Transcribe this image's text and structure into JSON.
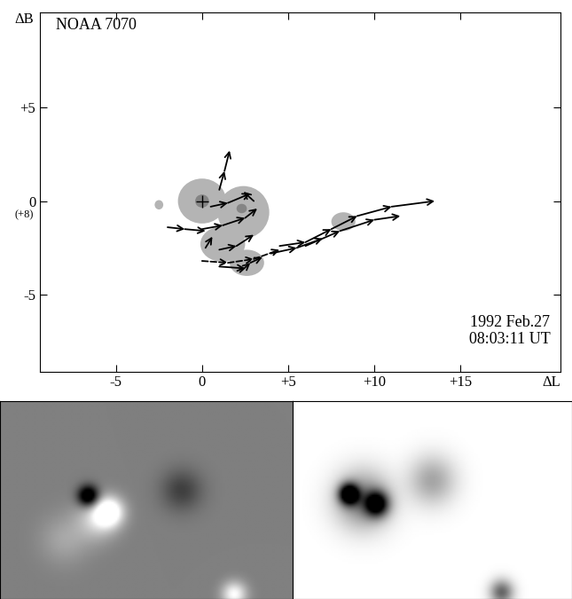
{
  "chart_data": {
    "type": "vector_map",
    "title": "NOAA 7070",
    "x_label": "ΔL",
    "y_label": "ΔB",
    "y_origin_note": "(+8)",
    "date": "1992 Feb.27",
    "time": "08:03:11 UT",
    "xlim": [
      -9.4,
      20.8
    ],
    "ylim": [
      -9.1,
      10.1
    ],
    "xticks": [
      {
        "value": -5,
        "label": "-5"
      },
      0,
      {
        "value": 5,
        "label": "+5"
      },
      {
        "value": 10,
        "label": "+10"
      },
      {
        "value": 15,
        "label": "+15"
      }
    ],
    "yticks": [
      {
        "value": 5,
        "label": "+5"
      },
      0,
      {
        "value": -5,
        "label": "-5"
      }
    ],
    "penumbra": {
      "color": "#b4b4b4",
      "ellipses": [
        {
          "x": 0.0,
          "y": 0.0,
          "width": 2.8,
          "height": 2.4
        },
        {
          "x": 2.4,
          "y": -0.6,
          "width": 3.0,
          "height": 2.8
        },
        {
          "x": 1.2,
          "y": -2.3,
          "width": 2.6,
          "height": 1.9
        },
        {
          "x": 2.6,
          "y": -3.3,
          "width": 2.0,
          "height": 1.4
        },
        {
          "x": 8.2,
          "y": -1.1,
          "width": 1.4,
          "height": 1.0
        },
        {
          "x": -2.5,
          "y": -0.2,
          "width": 0.5,
          "height": 0.5
        }
      ]
    },
    "umbra": {
      "color": "#858585",
      "ellipses": [
        {
          "x": 0.0,
          "y": 0.0,
          "width": 0.8,
          "height": 0.7
        },
        {
          "x": 2.3,
          "y": -0.4,
          "width": 0.6,
          "height": 0.5
        }
      ]
    },
    "reference_point": {
      "x": 0,
      "y": 0,
      "marker": "+"
    },
    "trajectories": [
      {
        "line_style": "solid",
        "points": [
          [
            4.5,
            -2.4
          ],
          [
            6.0,
            -2.2
          ],
          [
            7.5,
            -1.5
          ],
          [
            9.0,
            -0.8
          ],
          [
            11.0,
            -0.3
          ],
          [
            13.5,
            0.0
          ]
        ]
      },
      {
        "line_style": "solid",
        "points": [
          [
            6.0,
            -2.4
          ],
          [
            8.0,
            -1.6
          ],
          [
            10.0,
            -1.0
          ],
          [
            11.5,
            -0.8
          ]
        ]
      },
      {
        "line_style": "solid",
        "points": [
          [
            4.0,
            -2.8
          ],
          [
            5.5,
            -2.5
          ],
          [
            7.0,
            -2.0
          ]
        ]
      },
      {
        "line_style": "dashed",
        "points": [
          [
            0.0,
            -3.2
          ],
          [
            1.5,
            -3.3
          ],
          [
            3.0,
            -3.1
          ],
          [
            4.5,
            -2.6
          ]
        ]
      },
      {
        "line_style": "solid",
        "points": [
          [
            1.0,
            0.6
          ],
          [
            1.3,
            1.6
          ],
          [
            1.6,
            2.7
          ]
        ]
      },
      {
        "line_style": "solid",
        "points": [
          [
            -2.0,
            -1.4
          ],
          [
            -1.0,
            -1.5
          ],
          [
            0.2,
            -1.6
          ]
        ]
      },
      {
        "line_style": "solid",
        "points": [
          [
            0.0,
            -1.5
          ],
          [
            1.2,
            -1.3
          ],
          [
            2.5,
            -0.9
          ],
          [
            3.2,
            -0.4
          ]
        ]
      },
      {
        "line_style": "solid",
        "points": [
          [
            0.5,
            -0.3
          ],
          [
            1.5,
            -0.1
          ],
          [
            2.8,
            0.4
          ]
        ]
      },
      {
        "line_style": "solid",
        "points": [
          [
            3.0,
            0.0
          ],
          [
            2.4,
            0.5
          ]
        ]
      },
      {
        "line_style": "solid",
        "points": [
          [
            1.0,
            -2.6
          ],
          [
            2.0,
            -2.4
          ],
          [
            3.0,
            -1.8
          ]
        ]
      },
      {
        "line_style": "solid",
        "points": [
          [
            0.2,
            -2.5
          ],
          [
            0.6,
            -1.9
          ]
        ]
      },
      {
        "line_style": "solid",
        "points": [
          [
            2.2,
            -3.8
          ],
          [
            2.8,
            -3.3
          ],
          [
            3.5,
            -3.0
          ]
        ]
      },
      {
        "line_style": "solid",
        "points": [
          [
            1.0,
            -3.5
          ],
          [
            2.5,
            -3.6
          ]
        ]
      }
    ],
    "magnetogram": {
      "value_range": [
        -1,
        1
      ],
      "sources": [
        {
          "x": 0.3,
          "y": 0.52,
          "amplitude": -1.6,
          "width": 0.025
        },
        {
          "x": 0.37,
          "y": 0.44,
          "amplitude": 1.3,
          "width": 0.035
        },
        {
          "x": 0.33,
          "y": 0.4,
          "amplitude": 0.6,
          "width": 0.05
        },
        {
          "x": 0.62,
          "y": 0.55,
          "amplitude": -0.5,
          "width": 0.05
        },
        {
          "x": 0.22,
          "y": 0.3,
          "amplitude": 0.3,
          "width": 0.06
        },
        {
          "x": 0.8,
          "y": 0.02,
          "amplitude": 1.0,
          "width": 0.03
        }
      ]
    },
    "continuum": {
      "value_range": [
        0,
        1
      ],
      "sources": [
        {
          "x": 0.2,
          "y": 0.53,
          "amplitude": 1.2,
          "width": 0.025
        },
        {
          "x": 0.3,
          "y": 0.48,
          "amplitude": 1.0,
          "width": 0.03
        },
        {
          "x": 0.25,
          "y": 0.5,
          "amplitude": 0.5,
          "width": 0.07
        },
        {
          "x": 0.5,
          "y": 0.6,
          "amplitude": 0.35,
          "width": 0.06
        },
        {
          "x": 0.75,
          "y": 0.03,
          "amplitude": 0.6,
          "width": 0.03
        }
      ]
    }
  }
}
